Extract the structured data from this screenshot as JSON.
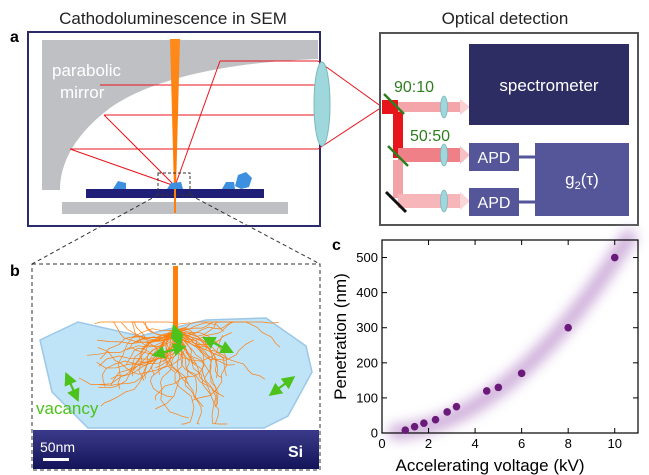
{
  "titles": {
    "left": "Cathodoluminescence in SEM",
    "right": "Optical detection"
  },
  "panel_letters": {
    "a": "a",
    "b": "b",
    "c": "c"
  },
  "panel_a": {
    "mirror_label_line1": "parabolic",
    "mirror_label_line2": "mirror"
  },
  "detection": {
    "splitter1_ratio": "90:10",
    "splitter2_ratio": "50:50",
    "spectrometer": "spectrometer",
    "apd_top": "APD",
    "apd_bottom": "APD",
    "correlator_g": "g",
    "correlator_sub": "2",
    "correlator_arg": "(τ)"
  },
  "panel_b": {
    "vacancy_label": "vacancy",
    "scale_bar": "50nm",
    "substrate": "Si"
  },
  "colors": {
    "frame_navy": "#2b2b6b",
    "spectrometer_fill": "#2d2d63",
    "apd_fill": "#555599",
    "electron_orange": "#ff7f0e",
    "beam_red": "#e8141c",
    "lens_cyan": "#9ed8dc",
    "mirror_gray": "#bfc0c4",
    "vacancy_green": "#4cc21a",
    "ratio_green": "#2e7d1f",
    "crystal_blue": "#3d8fdf",
    "data_purple": "#6a1b7a",
    "halo_purple": "#c8a4d6",
    "nanodiamond_fill": "#bfe3f7"
  },
  "chart_data": {
    "type": "scatter",
    "title": "",
    "xlabel": "Accelerating voltage (kV)",
    "ylabel": "Penetration (nm)",
    "xlim": [
      0,
      11
    ],
    "ylim": [
      0,
      550
    ],
    "xticks": [
      0,
      2,
      4,
      6,
      8,
      10
    ],
    "yticks": [
      0,
      100,
      200,
      300,
      400,
      500
    ],
    "grid": false,
    "x": [
      1.0,
      1.4,
      1.8,
      2.3,
      2.8,
      3.2,
      4.5,
      5.0,
      6.0,
      8.0,
      10.0
    ],
    "y": [
      8,
      18,
      28,
      38,
      60,
      75,
      120,
      130,
      170,
      300,
      500
    ]
  }
}
